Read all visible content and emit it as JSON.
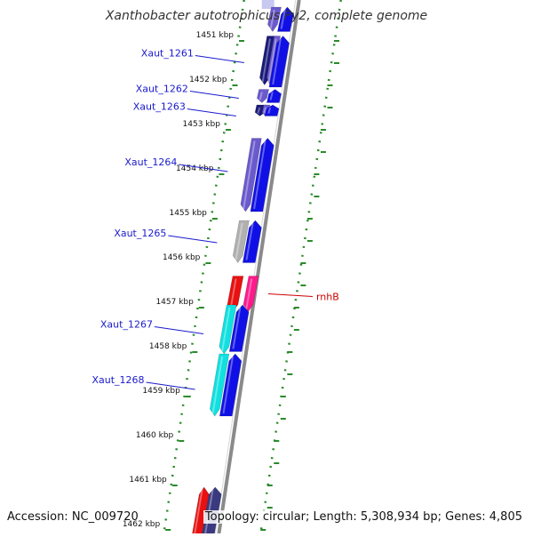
{
  "header": {
    "title": "Xanthobacter autotrophicus Py2, complete genome"
  },
  "footer": {
    "accession": "Accession: NC_009720",
    "summary": "Topology: circular; Length: 5,308,934 bp; Genes: 4,805"
  },
  "colors": {
    "background": "#ffffff",
    "backbone": "#8a8a8a",
    "tick_green": "#2a8a2a",
    "label_blue": "#1a1acc",
    "label_red": "#cc0000",
    "cds_blue": "#1010e6",
    "gene_purple": "#6a5acd",
    "gene_navy": "#1a1a7a",
    "gene_gray": "#b0b0b0",
    "gene_cyan": "#10e0e0",
    "gene_red": "#e81010",
    "gene_pink": "#ff1a8c",
    "gene_dark_slate": "#3a3a80"
  },
  "axis": {
    "unit": "kbp",
    "ticks": [
      {
        "kbp": 1451,
        "label": "1451 kbp"
      },
      {
        "kbp": 1452,
        "label": "1452 kbp"
      },
      {
        "kbp": 1453,
        "label": "1453 kbp"
      },
      {
        "kbp": 1454,
        "label": "1454 kbp"
      },
      {
        "kbp": 1455,
        "label": "1455 kbp"
      },
      {
        "kbp": 1456,
        "label": "1456 kbp"
      },
      {
        "kbp": 1457,
        "label": "1457 kbp"
      },
      {
        "kbp": 1458,
        "label": "1458 kbp"
      },
      {
        "kbp": 1459,
        "label": "1459 kbp"
      },
      {
        "kbp": 1460,
        "label": "1460 kbp"
      },
      {
        "kbp": 1461,
        "label": "1461 kbp"
      },
      {
        "kbp": 1462,
        "label": "1462 kbp"
      }
    ]
  },
  "genes": [
    {
      "name": "top-partial-purple",
      "start": 1450.4,
      "end": 1450.95,
      "track": "left-outer",
      "color": "gene_purple",
      "strand": "-"
    },
    {
      "name": "top-partial-blue",
      "start": 1450.4,
      "end": 1450.95,
      "track": "right-cds",
      "color": "cds_blue",
      "strand": "+"
    },
    {
      "name": "Xaut_1261-a",
      "start": 1451.05,
      "end": 1452.15,
      "track": "left-outer",
      "color": "gene_navy",
      "strand": "-"
    },
    {
      "name": "Xaut_1261-b",
      "start": 1451.05,
      "end": 1452.15,
      "track": "left-outer2",
      "color": "gene_purple",
      "strand": "-"
    },
    {
      "name": "Xaut_1261-cds",
      "start": 1451.05,
      "end": 1452.2,
      "track": "right-cds",
      "color": "cds_blue",
      "strand": "+"
    },
    {
      "name": "Xaut_1262-a",
      "start": 1452.25,
      "end": 1452.55,
      "track": "left-outer",
      "color": "gene_purple",
      "strand": "-"
    },
    {
      "name": "Xaut_1262-cds",
      "start": 1452.25,
      "end": 1452.55,
      "track": "right-cds",
      "color": "cds_blue",
      "strand": "+"
    },
    {
      "name": "Xaut_1263-a",
      "start": 1452.6,
      "end": 1452.85,
      "track": "left-outer",
      "color": "gene_navy",
      "strand": "-"
    },
    {
      "name": "Xaut_1263-b",
      "start": 1452.6,
      "end": 1452.85,
      "track": "left-outer2",
      "color": "gene_purple",
      "strand": "-"
    },
    {
      "name": "Xaut_1263-cds",
      "start": 1452.6,
      "end": 1452.85,
      "track": "right-cds",
      "color": "cds_blue",
      "strand": "+"
    },
    {
      "name": "Xaut_1264-a",
      "start": 1453.35,
      "end": 1455.0,
      "track": "left-outer",
      "color": "gene_purple",
      "strand": "-"
    },
    {
      "name": "Xaut_1264-cds",
      "start": 1453.35,
      "end": 1455.0,
      "track": "right-cds",
      "color": "cds_blue",
      "strand": "+"
    },
    {
      "name": "Xaut_1265-a",
      "start": 1455.2,
      "end": 1456.15,
      "track": "left-outer",
      "color": "gene_gray",
      "strand": "-"
    },
    {
      "name": "Xaut_1265-cds",
      "start": 1455.2,
      "end": 1456.15,
      "track": "right-cds",
      "color": "cds_blue",
      "strand": "+"
    },
    {
      "name": "rnhB-red",
      "start": 1456.45,
      "end": 1457.25,
      "track": "right-outer",
      "color": "gene_red",
      "strand": "-"
    },
    {
      "name": "rnhB-pink",
      "start": 1456.45,
      "end": 1457.25,
      "track": "right-outer2",
      "color": "gene_pink",
      "strand": "-"
    },
    {
      "name": "Xaut_1267-a",
      "start": 1457.1,
      "end": 1458.2,
      "track": "left-outer",
      "color": "gene_cyan",
      "strand": "-"
    },
    {
      "name": "Xaut_1267-cds",
      "start": 1457.1,
      "end": 1458.15,
      "track": "right-cds",
      "color": "cds_blue",
      "strand": "+"
    },
    {
      "name": "Xaut_1268-a",
      "start": 1458.2,
      "end": 1459.6,
      "track": "left-outer",
      "color": "gene_cyan",
      "strand": "-"
    },
    {
      "name": "Xaut_1268-cds",
      "start": 1458.2,
      "end": 1459.6,
      "track": "right-cds",
      "color": "cds_blue",
      "strand": "+"
    },
    {
      "name": "bottom-red",
      "start": 1461.2,
      "end": 1462.3,
      "track": "left-outer",
      "color": "gene_red",
      "strand": "+"
    },
    {
      "name": "bottom-slate",
      "start": 1461.2,
      "end": 1462.3,
      "track": "right-cds",
      "color": "gene_dark_slate",
      "strand": "+"
    }
  ],
  "labels": [
    {
      "text": "Xaut_1261",
      "anchor_kbp": 1451.55,
      "side": "left",
      "color": "label_blue"
    },
    {
      "text": "Xaut_1262",
      "anchor_kbp": 1452.35,
      "side": "left",
      "color": "label_blue"
    },
    {
      "text": "Xaut_1263",
      "anchor_kbp": 1452.75,
      "side": "left",
      "color": "label_blue"
    },
    {
      "text": "Xaut_1264",
      "anchor_kbp": 1454.0,
      "side": "left",
      "color": "label_blue"
    },
    {
      "text": "Xaut_1265",
      "anchor_kbp": 1455.6,
      "side": "left",
      "color": "label_blue"
    },
    {
      "text": "rnhB",
      "anchor_kbp": 1456.85,
      "side": "right",
      "color": "label_red"
    },
    {
      "text": "Xaut_1267",
      "anchor_kbp": 1457.65,
      "side": "left",
      "color": "label_blue"
    },
    {
      "text": "Xaut_1268",
      "anchor_kbp": 1458.9,
      "side": "left",
      "color": "label_blue"
    }
  ]
}
